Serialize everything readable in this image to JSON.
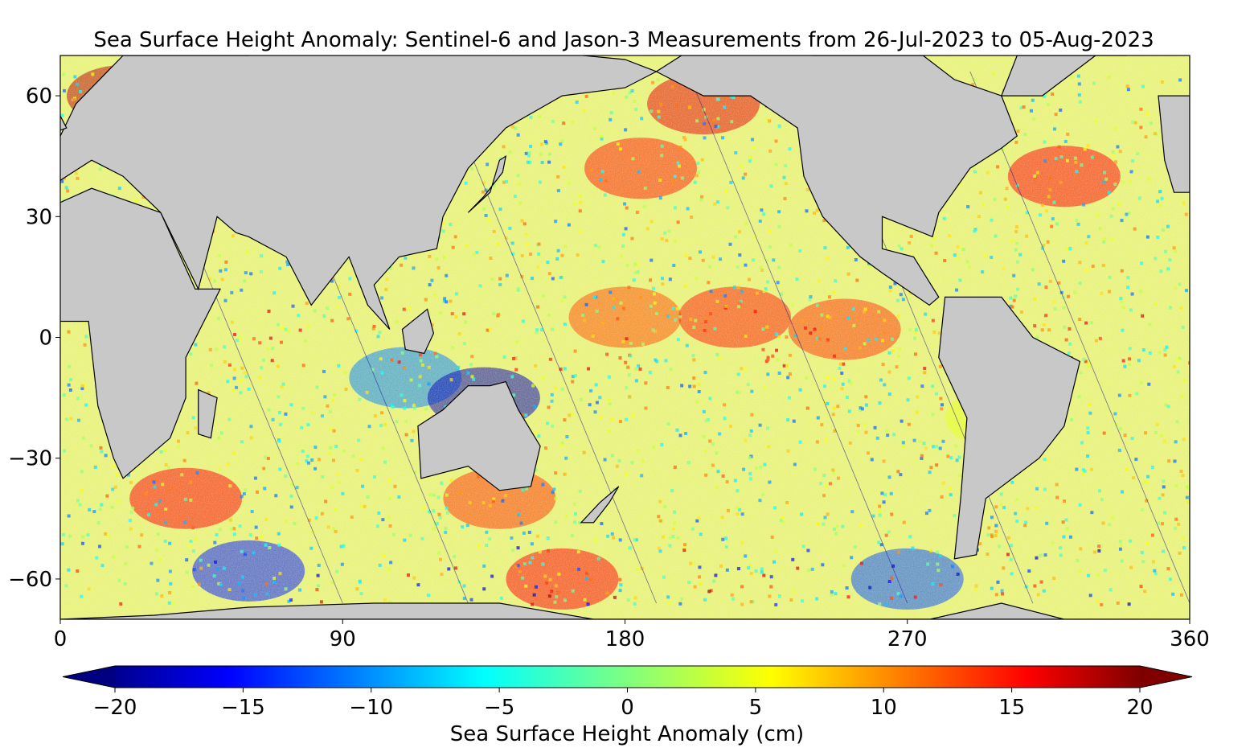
{
  "figure": {
    "title": "Sea Surface Height Anomaly: Sentinel-6 and Jason-3 Measurements from 26-Jul-2023 to 05-Aug-2023"
  },
  "colors": {
    "ocean_low": "#00008f",
    "ocean_mid": "#80ff80",
    "ocean_high": "#800000",
    "land": "#c8c8c8",
    "coast": "#000000",
    "background": "#ffffff"
  },
  "chart_data": {
    "type": "heatmap",
    "title": "Sea Surface Height Anomaly: Sentinel-6 and Jason-3 Measurements from 26-Jul-2023 to 05-Aug-2023",
    "xlabel": "",
    "ylabel": "",
    "xlim": [
      0,
      360
    ],
    "ylim": [
      -70,
      70
    ],
    "x_ticks": [
      0,
      90,
      180,
      270,
      360
    ],
    "y_ticks": [
      60,
      30,
      0,
      -30,
      -60
    ],
    "x_tick_labels": [
      "0",
      "90",
      "180",
      "270",
      "360"
    ],
    "y_tick_labels": [
      "60",
      "30",
      "0",
      "−30",
      "−60"
    ],
    "grid": false,
    "colorbar": {
      "label": "Sea Surface Height Anomaly (cm)",
      "range": [
        -20,
        20
      ],
      "ticks": [
        -20,
        -15,
        -10,
        -5,
        0,
        5,
        10,
        15,
        20
      ],
      "tick_labels": [
        "−20",
        "−15",
        "−10",
        "−5",
        "0",
        "5",
        "10",
        "15",
        "20"
      ],
      "colormap": "jet",
      "extend": "both",
      "orientation": "horizontal"
    },
    "anomaly_regions": [
      {
        "lon": 180,
        "lat": 5,
        "value": 12
      },
      {
        "lon": 215,
        "lat": 5,
        "value": 14
      },
      {
        "lon": 250,
        "lat": 2,
        "value": 13
      },
      {
        "lon": 185,
        "lat": 42,
        "value": 14
      },
      {
        "lon": 320,
        "lat": 40,
        "value": 15
      },
      {
        "lon": 110,
        "lat": -10,
        "value": -10
      },
      {
        "lon": 135,
        "lat": -15,
        "value": -18
      },
      {
        "lon": 60,
        "lat": -58,
        "value": -14
      },
      {
        "lon": 270,
        "lat": -60,
        "value": -12
      },
      {
        "lon": 40,
        "lat": -40,
        "value": 15
      },
      {
        "lon": 140,
        "lat": -40,
        "value": 13
      },
      {
        "lon": 160,
        "lat": -60,
        "value": 15
      },
      {
        "lon": 300,
        "lat": -20,
        "value": 4
      },
      {
        "lon": 20,
        "lat": 60,
        "value": 18
      },
      {
        "lon": 205,
        "lat": 58,
        "value": 16
      }
    ]
  }
}
